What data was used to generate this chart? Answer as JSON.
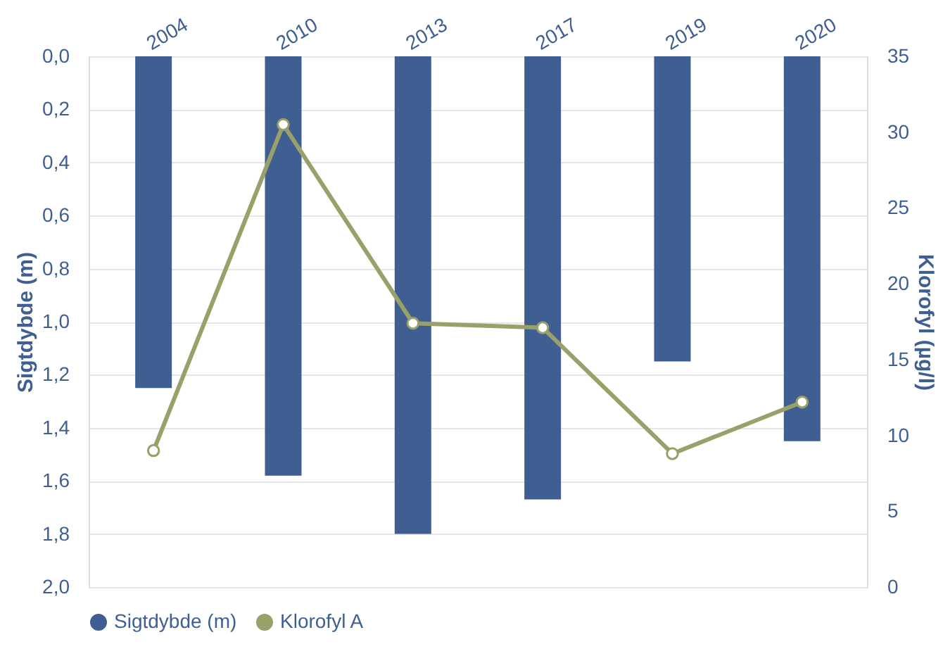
{
  "chart_data": {
    "type": "bar",
    "categories": [
      "2004",
      "2010",
      "2013",
      "2017",
      "2019",
      "2020"
    ],
    "ylabel": "Sigtdybde (m)",
    "y2label": "Klorofyl (µg/l)",
    "series": [
      {
        "name": "Sigtdybde (m)",
        "color": "#3f5f93",
        "values": [
          1.25,
          1.58,
          1.8,
          1.67,
          1.15,
          1.45
        ]
      },
      {
        "name": "Klorofyl A",
        "type": "line",
        "axis": "y2",
        "color": "#9aa06a",
        "marker": "circle",
        "values": [
          9.0,
          30.5,
          17.4,
          17.1,
          8.8,
          12.2
        ]
      }
    ],
    "ylim": [
      2.0,
      0.0
    ],
    "yticks": [
      {
        "value": 0.0,
        "label": "0,0"
      },
      {
        "value": 0.2,
        "label": "0,2"
      },
      {
        "value": 0.4,
        "label": "0,4"
      },
      {
        "value": 0.6,
        "label": "0,6"
      },
      {
        "value": 0.8,
        "label": "0,8"
      },
      {
        "value": 1.0,
        "label": "1,0"
      },
      {
        "value": 1.2,
        "label": "1,2"
      },
      {
        "value": 1.4,
        "label": "1,4"
      },
      {
        "value": 1.6,
        "label": "1,6"
      },
      {
        "value": 1.8,
        "label": "1,8"
      },
      {
        "value": 2.0,
        "label": "2,0"
      }
    ],
    "y2lim": [
      0,
      35
    ],
    "y2ticks": [
      0,
      5,
      10,
      15,
      20,
      25,
      30,
      35
    ],
    "grid": "y",
    "legend": "bottom"
  }
}
